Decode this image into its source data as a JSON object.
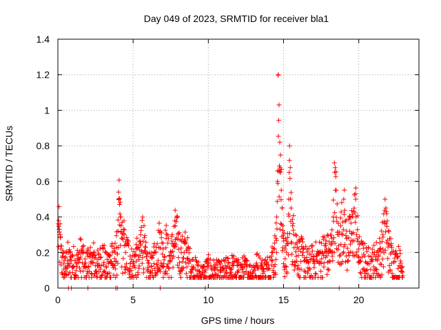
{
  "chart_data": {
    "type": "scatter",
    "title": "Day 049 of 2023, SRMTID for receiver bla1",
    "xlabel": "GPS time / hours",
    "ylabel": "SRMTID / TECUs",
    "xlim": [
      0,
      24
    ],
    "ylim": [
      0,
      1.4
    ],
    "xticks": [
      0,
      5,
      10,
      15,
      20
    ],
    "xtick_labels": [
      "0",
      "5",
      "10",
      "15",
      "20"
    ],
    "yticks": [
      0,
      0.2,
      0.4,
      0.6,
      0.8,
      1.0,
      1.2,
      1.4
    ],
    "ytick_labels": [
      "0",
      "0.2",
      "0.4",
      "0.6",
      "0.8",
      "1",
      "1.2",
      "1.4"
    ],
    "grid": true,
    "marker": "+",
    "color": "#ff0000",
    "series": [
      {
        "name": "SRMTID bla1",
        "x": [
          0.05,
          0.1,
          0.15,
          0.2,
          0.3,
          0.4,
          0.5,
          0.6,
          0.8,
          1.0,
          1.2,
          1.4,
          1.6,
          1.8,
          2.0,
          2.2,
          2.4,
          2.6,
          2.8,
          3.0,
          3.2,
          3.4,
          3.5,
          3.6,
          3.7,
          3.8,
          3.9,
          4.0,
          4.05,
          4.1,
          4.15,
          4.2,
          4.3,
          4.4,
          4.5,
          4.6,
          4.8,
          5.0,
          5.2,
          5.4,
          5.5,
          5.6,
          5.8,
          6.0,
          6.2,
          6.4,
          6.6,
          6.8,
          7.0,
          7.2,
          7.4,
          7.6,
          7.8,
          8.0,
          8.2,
          8.4,
          8.6,
          8.8,
          9.0,
          9.3,
          9.6,
          10.0,
          10.4,
          10.8,
          11.2,
          11.6,
          12.0,
          12.4,
          12.8,
          13.2,
          13.6,
          14.0,
          14.2,
          14.4,
          14.5,
          14.55,
          14.6,
          14.65,
          14.7,
          14.75,
          14.8,
          14.85,
          14.9,
          14.95,
          15.0,
          15.1,
          15.2,
          15.3,
          15.35,
          15.4,
          15.5,
          15.6,
          15.8,
          16.0,
          16.3,
          16.6,
          17.0,
          17.4,
          17.8,
          18.0,
          18.2,
          18.3,
          18.4,
          18.5,
          18.6,
          18.8,
          19.0,
          19.2,
          19.4,
          19.6,
          19.8,
          20.0,
          20.4,
          20.8,
          21.2,
          21.4,
          21.6,
          21.8,
          22.0,
          22.2,
          22.4,
          22.6,
          22.8,
          22.9
        ],
        "y": [
          0.38,
          0.33,
          0.3,
          0.22,
          0.18,
          0.14,
          0.12,
          0.2,
          0.16,
          0.18,
          0.14,
          0.2,
          0.22,
          0.12,
          0.18,
          0.15,
          0.2,
          0.14,
          0.17,
          0.22,
          0.12,
          0.18,
          0.15,
          0.25,
          0.13,
          0.2,
          0.23,
          0.32,
          0.5,
          0.47,
          0.4,
          0.35,
          0.28,
          0.3,
          0.2,
          0.25,
          0.18,
          0.15,
          0.22,
          0.16,
          0.3,
          0.38,
          0.2,
          0.14,
          0.12,
          0.2,
          0.25,
          0.32,
          0.22,
          0.28,
          0.18,
          0.25,
          0.35,
          0.3,
          0.2,
          0.26,
          0.22,
          0.15,
          0.12,
          0.1,
          0.08,
          0.12,
          0.1,
          0.09,
          0.11,
          0.13,
          0.1,
          0.12,
          0.09,
          0.14,
          0.11,
          0.13,
          0.18,
          0.22,
          0.28,
          0.4,
          0.6,
          1.2,
          1.03,
          0.82,
          0.65,
          0.55,
          0.45,
          0.35,
          0.28,
          0.22,
          0.2,
          0.25,
          0.5,
          0.8,
          0.45,
          0.35,
          0.3,
          0.22,
          0.2,
          0.15,
          0.18,
          0.2,
          0.25,
          0.22,
          0.28,
          0.4,
          0.65,
          0.55,
          0.3,
          0.35,
          0.5,
          0.28,
          0.32,
          0.4,
          0.5,
          0.22,
          0.18,
          0.15,
          0.2,
          0.22,
          0.3,
          0.45,
          0.25,
          0.2,
          0.15,
          0.18,
          0.14,
          0.12
        ],
        "zero_x": [
          0.7,
          0.9,
          2.0,
          3.85,
          3.95,
          6.8,
          9.8,
          16.05,
          18.7
        ]
      }
    ]
  }
}
